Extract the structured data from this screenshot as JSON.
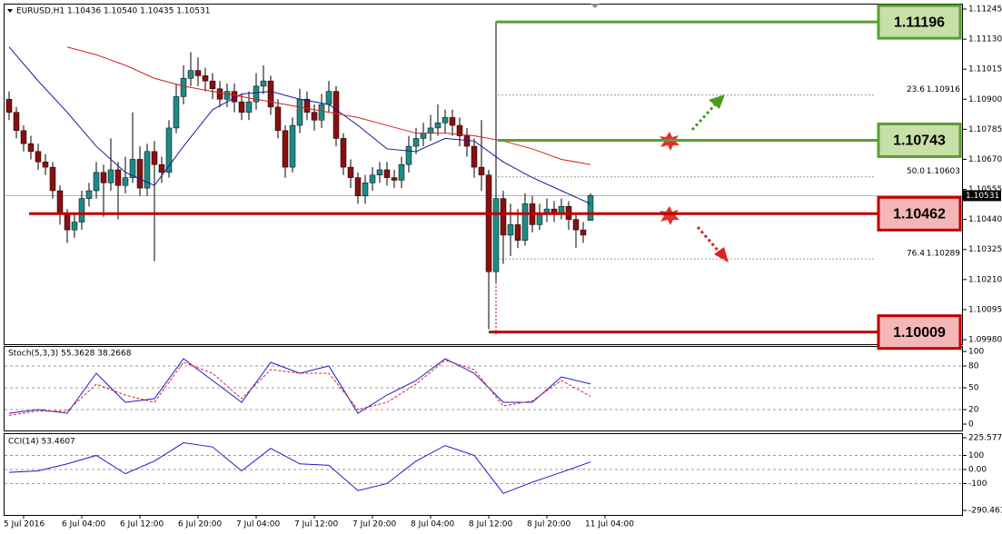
{
  "chart_data": [
    {
      "type": "candlestick",
      "title": "EURUSD,H1 1.10436 1.10540 1.10435 1.10531",
      "ylim": [
        1.0998,
        1.11245
      ],
      "yticks": [
        1.11245,
        {
          "value": 1.1113,
          "label": "1.11130"
        },
        1.11015,
        {
          "value": 1.109,
          "label": "1.10900"
        },
        1.10785,
        {
          "value": 1.1067,
          "label": "1.10670"
        },
        1.10555,
        {
          "value": 1.1044,
          "label": "1.10440"
        },
        1.10325,
        {
          "value": 1.1021,
          "label": "1.10210"
        },
        1.10095,
        {
          "value": 1.0998,
          "label": "1.09980"
        }
      ],
      "up_color": "#1f8a84",
      "down_color": "#8b0f0f",
      "candles": [
        [
          1.109,
          1.1093,
          1.1082,
          1.1085
        ],
        [
          1.1085,
          1.1087,
          1.1075,
          1.1078
        ],
        [
          1.1078,
          1.108,
          1.107,
          1.1073
        ],
        [
          1.1073,
          1.1076,
          1.1067,
          1.107
        ],
        [
          1.107,
          1.1073,
          1.1063,
          1.1066
        ],
        [
          1.1066,
          1.1069,
          1.1061,
          1.1064
        ],
        [
          1.1064,
          1.1066,
          1.1052,
          1.1055
        ],
        [
          1.1055,
          1.1057,
          1.1042,
          1.1046
        ],
        [
          1.1046,
          1.1048,
          1.1035,
          1.104
        ],
        [
          1.104,
          1.1046,
          1.1037,
          1.1043
        ],
        [
          1.1043,
          1.1055,
          1.104,
          1.1052
        ],
        [
          1.1052,
          1.1058,
          1.1049,
          1.1055
        ],
        [
          1.1055,
          1.1066,
          1.1052,
          1.1062
        ],
        [
          1.1062,
          1.1065,
          1.1045,
          1.1058
        ],
        [
          1.1058,
          1.1075,
          1.1055,
          1.1063
        ],
        [
          1.1063,
          1.1066,
          1.1044,
          1.1057
        ],
        [
          1.1057,
          1.1068,
          1.1054,
          1.106
        ],
        [
          1.106,
          1.1085,
          1.1058,
          1.1067
        ],
        [
          1.1067,
          1.1072,
          1.1053,
          1.1056
        ],
        [
          1.1056,
          1.1073,
          1.1053,
          1.107
        ],
        [
          1.107,
          1.1074,
          1.1028,
          1.1065
        ],
        [
          1.1065,
          1.1068,
          1.1058,
          1.1062
        ],
        [
          1.1062,
          1.1082,
          1.106,
          1.1079
        ],
        [
          1.1079,
          1.1096,
          1.1077,
          1.1091
        ],
        [
          1.1091,
          1.1103,
          1.1088,
          1.1098
        ],
        [
          1.1098,
          1.1108,
          1.1095,
          1.1101
        ],
        [
          1.1101,
          1.1106,
          1.1095,
          1.1099
        ],
        [
          1.1099,
          1.1102,
          1.1093,
          1.1097
        ],
        [
          1.1097,
          1.11,
          1.109,
          1.1094
        ],
        [
          1.1094,
          1.1097,
          1.1087,
          1.109
        ],
        [
          1.109,
          1.1096,
          1.1087,
          1.1093
        ],
        [
          1.1093,
          1.1096,
          1.1085,
          1.1089
        ],
        [
          1.1089,
          1.1092,
          1.1082,
          1.1085
        ],
        [
          1.1085,
          1.1093,
          1.1082,
          1.1089
        ],
        [
          1.1089,
          1.11,
          1.1086,
          1.1095
        ],
        [
          1.1095,
          1.1103,
          1.1092,
          1.1097
        ],
        [
          1.1097,
          1.1099,
          1.1084,
          1.1087
        ],
        [
          1.1087,
          1.109,
          1.1075,
          1.1078
        ],
        [
          1.1078,
          1.108,
          1.106,
          1.1064
        ],
        [
          1.1064,
          1.1083,
          1.1062,
          1.108
        ],
        [
          1.108,
          1.1094,
          1.1077,
          1.109
        ],
        [
          1.109,
          1.1093,
          1.1082,
          1.1085
        ],
        [
          1.1085,
          1.1088,
          1.1078,
          1.1082
        ],
        [
          1.1082,
          1.1092,
          1.1079,
          1.1088
        ],
        [
          1.1088,
          1.1097,
          1.1085,
          1.1093
        ],
        [
          1.1093,
          1.1095,
          1.1072,
          1.1075
        ],
        [
          1.1075,
          1.1077,
          1.1061,
          1.1064
        ],
        [
          1.1064,
          1.1067,
          1.1056,
          1.106
        ],
        [
          1.106,
          1.1062,
          1.105,
          1.1053
        ],
        [
          1.1053,
          1.1061,
          1.105,
          1.1058
        ],
        [
          1.1058,
          1.1064,
          1.1055,
          1.1061
        ],
        [
          1.1061,
          1.1066,
          1.1058,
          1.1063
        ],
        [
          1.1063,
          1.1066,
          1.1057,
          1.106
        ],
        [
          1.106,
          1.1063,
          1.1056,
          1.1059
        ],
        [
          1.1059,
          1.1068,
          1.1056,
          1.1065
        ],
        [
          1.1065,
          1.1076,
          1.1062,
          1.1072
        ],
        [
          1.1072,
          1.1079,
          1.1069,
          1.1075
        ],
        [
          1.1075,
          1.1081,
          1.1072,
          1.1077
        ],
        [
          1.1077,
          1.1084,
          1.1074,
          1.1079
        ],
        [
          1.1079,
          1.1088,
          1.1076,
          1.1081
        ],
        [
          1.1081,
          1.1086,
          1.1077,
          1.1083
        ],
        [
          1.1083,
          1.1086,
          1.1076,
          1.108
        ],
        [
          1.108,
          1.1083,
          1.1072,
          1.1076
        ],
        [
          1.1076,
          1.1079,
          1.1068,
          1.1072
        ],
        [
          1.1072,
          1.1075,
          1.106,
          1.1064
        ],
        [
          1.1064,
          1.1082,
          1.1055,
          1.1061
        ],
        [
          1.1061,
          1.1063,
          1.1002,
          1.1024
        ],
        [
          1.1024,
          1.11196,
          1.102,
          1.1052
        ],
        [
          1.1052,
          1.1055,
          1.1027,
          1.1038
        ],
        [
          1.1038,
          1.105,
          1.103,
          1.1042
        ],
        [
          1.1042,
          1.1048,
          1.1033,
          1.1036
        ],
        [
          1.1036,
          1.1054,
          1.1034,
          1.105
        ],
        [
          1.105,
          1.1053,
          1.1039,
          1.1042
        ],
        [
          1.1042,
          1.105,
          1.104,
          1.1046
        ],
        [
          1.1046,
          1.1052,
          1.1043,
          1.1048
        ],
        [
          1.1048,
          1.1051,
          1.1043,
          1.1046
        ],
        [
          1.1046,
          1.1052,
          1.1044,
          1.1049
        ],
        [
          1.1049,
          1.1051,
          1.104,
          1.1044
        ],
        [
          1.1044,
          1.1046,
          1.1033,
          1.104
        ],
        [
          1.104,
          1.1043,
          1.1035,
          1.1038
        ],
        [
          1.10436,
          1.1054,
          1.10435,
          1.10531
        ]
      ],
      "x": [
        0,
        4,
        8,
        12,
        16,
        20,
        24,
        28,
        32,
        36,
        40,
        44,
        48,
        52,
        56,
        60,
        64,
        68,
        72,
        76,
        80
      ],
      "series": [
        {
          "color": "#1a1a9c",
          "values": [
            1.111,
            1.1097,
            1.1085,
            1.1072,
            1.1062,
            1.1057,
            1.1072,
            1.1086,
            1.1092,
            1.1093,
            1.109,
            1.1088,
            1.108,
            1.1071,
            1.107,
            1.1075,
            1.1074,
            1.1066,
            1.106,
            1.1055,
            1.105
          ]
        },
        {
          "color": "#d42020",
          "values": [
            null,
            null,
            1.111,
            1.1107,
            1.1103,
            1.1098,
            1.1095,
            1.1093,
            1.1091,
            1.1089,
            1.1087,
            1.1085,
            1.1083,
            1.108,
            1.1077,
            1.1077,
            1.1076,
            1.1074,
            1.1071,
            1.1067,
            1.1065
          ]
        }
      ],
      "levels": [
        {
          "value": 1.11196,
          "color": "#5aa02c",
          "box": "#c6e0a8"
        },
        {
          "value": 1.10743,
          "color": "#5aa02c",
          "box": "#c6e0a8"
        },
        {
          "value": 1.10462,
          "color": "#c00000",
          "box": "#f4b6b6"
        },
        {
          "value": 1.10009,
          "color": "#c00000",
          "box": "#f4b6b6"
        }
      ],
      "fib": [
        {
          "level": 23.6,
          "price": 1.10916
        },
        {
          "level": {
            "value": 50,
            "label": "50.0"
          },
          "price": 1.10603
        },
        {
          "level": 76.4,
          "price": 1.10289
        }
      ],
      "last_price": 1.10531
    },
    {
      "type": "line",
      "title": "Stoch(5,3,3) 55.3628 38.2668",
      "ylim": [
        0,
        100
      ],
      "yticks": [
        100,
        80,
        50,
        20,
        0
      ],
      "x": [
        0,
        4,
        8,
        12,
        16,
        20,
        24,
        28,
        32,
        36,
        40,
        44,
        48,
        52,
        56,
        60,
        64,
        68,
        72,
        76,
        80
      ],
      "series": [
        {
          "color": "#1a1acc",
          "values": [
            15,
            20,
            15,
            70,
            30,
            35,
            90,
            60,
            30,
            85,
            70,
            80,
            15,
            40,
            60,
            90,
            70,
            30,
            30,
            65,
            55.3628
          ]
        },
        {
          "color": "#e02020",
          "dash": true,
          "values": [
            12,
            18,
            18,
            55,
            40,
            30,
            85,
            70,
            35,
            75,
            70,
            70,
            20,
            30,
            55,
            88,
            75,
            25,
            32,
            60,
            38.2668
          ]
        }
      ]
    },
    {
      "type": "line",
      "title": "CCI(14) 53.4607",
      "ylim": [
        -290.4615,
        225.5772
      ],
      "yticks": [
        225.5772,
        100,
        {
          "value": 0,
          "label": "0.00"
        },
        -100,
        -290.4615
      ],
      "x": [
        0,
        4,
        8,
        12,
        16,
        20,
        24,
        28,
        32,
        36,
        40,
        44,
        48,
        52,
        56,
        60,
        64,
        68,
        72,
        76,
        80
      ],
      "series": [
        {
          "color": "#1a1acc",
          "values": [
            -20,
            -10,
            40,
            100,
            -30,
            60,
            190,
            160,
            -10,
            150,
            40,
            30,
            -150,
            -100,
            60,
            170,
            100,
            -170,
            -90,
            -20,
            53.4607
          ]
        }
      ],
      "x_labels": [
        "5 Jul 2016",
        "6 Jul 04:00",
        "6 Jul 12:00",
        "6 Jul 20:00",
        "7 Jul 04:00",
        "7 Jul 12:00",
        "7 Jul 20:00",
        "8 Jul 04:00",
        "8 Jul 12:00",
        "8 Jul 20:00",
        "11 Jul 04:00"
      ]
    }
  ]
}
